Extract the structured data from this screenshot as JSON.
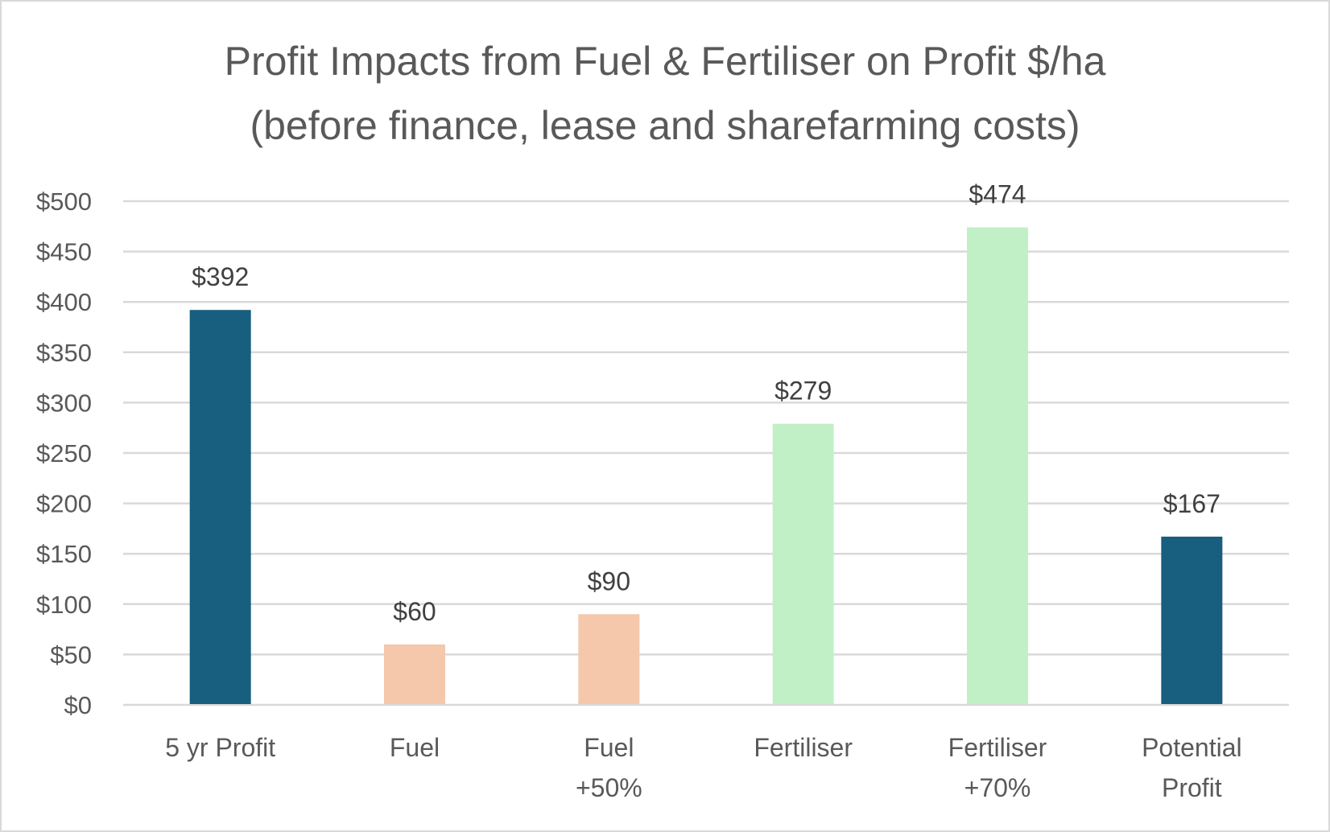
{
  "chart_data": {
    "type": "bar",
    "title": [
      "Profit Impacts from Fuel & Fertiliser on Profit $/ha",
      "(before finance, lease and sharefarming costs)"
    ],
    "xlabel": "",
    "ylabel": "",
    "categories": [
      [
        "5 yr Profit"
      ],
      [
        "Fuel"
      ],
      [
        "Fuel",
        "+50%"
      ],
      [
        "Fertiliser"
      ],
      [
        "Fertiliser",
        "+70%"
      ],
      [
        "Potential",
        "Profit"
      ]
    ],
    "values": [
      392,
      60,
      90,
      279,
      474,
      167
    ],
    "data_labels": [
      "$392",
      "$60",
      "$90",
      "$279",
      "$474",
      "$167"
    ],
    "bar_colors": [
      "#175E7F",
      "#F5C7AB",
      "#F5C7AB",
      "#C1F0C7",
      "#C1F0C7",
      "#175E7F"
    ],
    "ylim": [
      0,
      500
    ],
    "yticks": [
      0,
      50,
      100,
      150,
      200,
      250,
      300,
      350,
      400,
      450,
      500
    ],
    "ytick_labels": [
      "$0",
      "$50",
      "$100",
      "$150",
      "$200",
      "$250",
      "$300",
      "$350",
      "$400",
      "$450",
      "$500"
    ],
    "grid": true,
    "legend": "none"
  }
}
